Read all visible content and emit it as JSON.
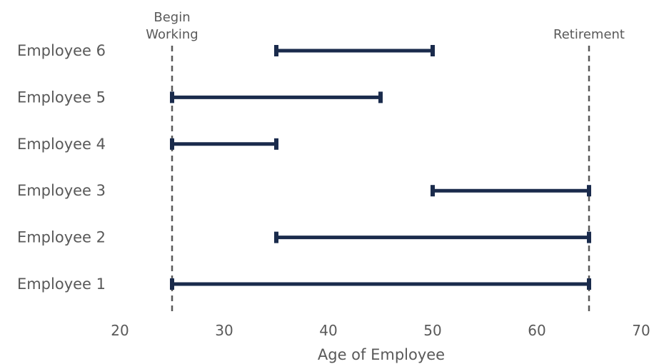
{
  "chart_data": {
    "type": "dumbbell",
    "title": "",
    "xlabel": "Age of Employee",
    "ylabel": "",
    "xlim": [
      20,
      70
    ],
    "xticks": [
      20,
      30,
      40,
      50,
      60,
      70
    ],
    "xtick_labels": [
      "20",
      "30",
      "40",
      "50",
      "60",
      "70"
    ],
    "grid": false,
    "legend": "none",
    "bar_color": "#1a2b4c",
    "reference_color": "#595959",
    "categories": [
      "Employee 6",
      "Employee 5",
      "Employee 4",
      "Employee 3",
      "Employee 2",
      "Employee 1"
    ],
    "ranges": [
      {
        "category": "Employee 6",
        "start": 35,
        "end": 50
      },
      {
        "category": "Employee 5",
        "start": 25,
        "end": 45
      },
      {
        "category": "Employee 4",
        "start": 25,
        "end": 35
      },
      {
        "category": "Employee 3",
        "start": 50,
        "end": 65
      },
      {
        "category": "Employee 2",
        "start": 35,
        "end": 65
      },
      {
        "category": "Employee 1",
        "start": 25,
        "end": 65
      }
    ],
    "reference_lines": [
      {
        "x": 25,
        "label_lines": [
          "Begin",
          "Working"
        ]
      },
      {
        "x": 65,
        "label_lines": [
          "Retirement"
        ]
      }
    ]
  }
}
